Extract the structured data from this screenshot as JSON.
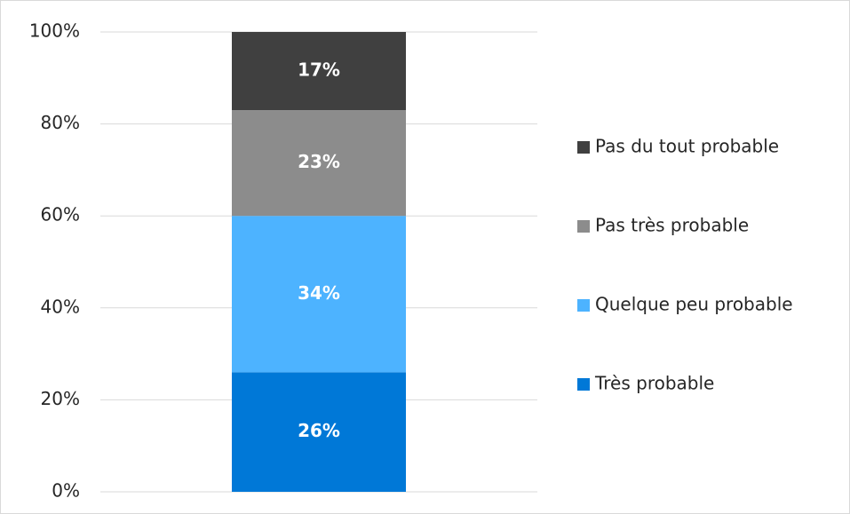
{
  "chart_data": {
    "type": "stacked_bar",
    "categories": [
      null
    ],
    "series": [
      {
        "name": "Très probable",
        "color": "#0078d7",
        "values": [
          26
        ],
        "value_labels": [
          "26%"
        ]
      },
      {
        "name": "Quelque peu probable",
        "color": "#4db3ff",
        "values": [
          34
        ],
        "value_labels": [
          "34%"
        ]
      },
      {
        "name": "Pas très probable",
        "color": "#8c8c8c",
        "values": [
          23
        ],
        "value_labels": [
          "23%"
        ]
      },
      {
        "name": "Pas du tout probable",
        "color": "#404040",
        "values": [
          17
        ],
        "value_labels": [
          "17%"
        ]
      }
    ],
    "ylim": [
      0,
      100
    ],
    "yticks": [
      {
        "value": 0,
        "label": "0%"
      },
      {
        "value": 20,
        "label": "20%"
      },
      {
        "value": 40,
        "label": "40%"
      },
      {
        "value": 60,
        "label": "60%"
      },
      {
        "value": 80,
        "label": "80%"
      },
      {
        "value": 100,
        "label": "100%"
      }
    ],
    "grid": true,
    "legend": "right"
  }
}
